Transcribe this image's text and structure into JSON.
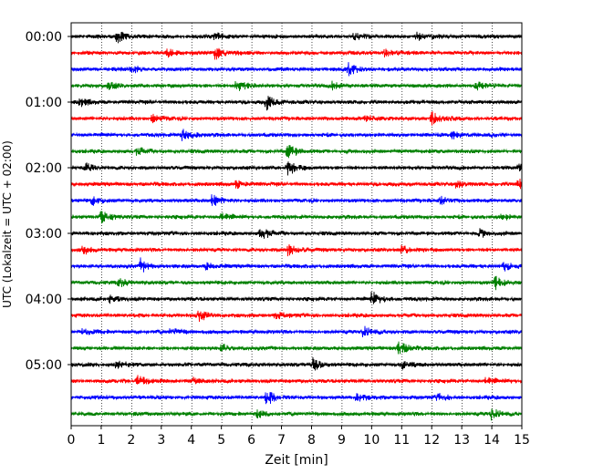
{
  "chart_data": {
    "type": "line",
    "xlabel": "Zeit  [min]",
    "ylabel": "UTC (Lokalzeit = UTC + 02:00)",
    "xlim": [
      0,
      15
    ],
    "x_ticks": [
      "0",
      "1",
      "2",
      "3",
      "4",
      "5",
      "6",
      "7",
      "8",
      "9",
      "10",
      "11",
      "12",
      "13",
      "14",
      "15"
    ],
    "y_ticks": [
      "00:00",
      "01:00",
      "02:00",
      "03:00",
      "04:00",
      "05:00"
    ],
    "grid": "vertical dotted at each minute",
    "trace_interval_min": 15,
    "trace_count": 24,
    "colors": [
      "#000000",
      "#ff0000",
      "#0000ff",
      "#008000"
    ],
    "traces": [
      {
        "start": "00:00",
        "color": "#000000",
        "events_min": [
          1.5,
          9.4,
          4.8,
          11.5
        ]
      },
      {
        "start": "00:15",
        "color": "#ff0000",
        "events_min": [
          4.8,
          3.2,
          10.4
        ]
      },
      {
        "start": "00:30",
        "color": "#0000ff",
        "events_min": [
          9.2,
          2.0
        ]
      },
      {
        "start": "00:45",
        "color": "#008000",
        "events_min": [
          5.5,
          1.2,
          13.5,
          8.7
        ]
      },
      {
        "start": "01:00",
        "color": "#000000",
        "events_min": [
          6.5,
          0.3
        ]
      },
      {
        "start": "01:15",
        "color": "#ff0000",
        "events_min": [
          12.0,
          9.8,
          2.7
        ]
      },
      {
        "start": "01:30",
        "color": "#0000ff",
        "events_min": [
          3.7,
          12.7
        ]
      },
      {
        "start": "01:45",
        "color": "#008000",
        "events_min": [
          7.2,
          2.2
        ]
      },
      {
        "start": "02:00",
        "color": "#000000",
        "events_min": [
          7.2,
          0.5,
          14.9
        ]
      },
      {
        "start": "02:15",
        "color": "#ff0000",
        "events_min": [
          14.9,
          12.8,
          5.5
        ]
      },
      {
        "start": "02:30",
        "color": "#0000ff",
        "events_min": [
          4.7,
          0.7,
          12.3
        ]
      },
      {
        "start": "02:45",
        "color": "#008000",
        "events_min": [
          1.0,
          14.3,
          5.0
        ]
      },
      {
        "start": "03:00",
        "color": "#000000",
        "events_min": [
          6.3,
          13.6
        ]
      },
      {
        "start": "03:15",
        "color": "#ff0000",
        "events_min": [
          7.2,
          0.4,
          11.0
        ]
      },
      {
        "start": "03:30",
        "color": "#0000ff",
        "events_min": [
          2.3,
          4.5,
          14.4
        ]
      },
      {
        "start": "03:45",
        "color": "#008000",
        "events_min": [
          14.1,
          1.6
        ]
      },
      {
        "start": "04:00",
        "color": "#000000",
        "events_min": [
          10.0,
          1.3
        ]
      },
      {
        "start": "04:15",
        "color": "#ff0000",
        "events_min": [
          4.2,
          6.8
        ]
      },
      {
        "start": "04:30",
        "color": "#0000ff",
        "events_min": [
          9.7,
          0.4,
          3.3
        ]
      },
      {
        "start": "04:45",
        "color": "#008000",
        "events_min": [
          10.9,
          5.0
        ]
      },
      {
        "start": "05:00",
        "color": "#000000",
        "events_min": [
          8.0,
          1.5,
          11.0
        ]
      },
      {
        "start": "05:15",
        "color": "#ff0000",
        "events_min": [
          2.2,
          4.0,
          13.8
        ]
      },
      {
        "start": "05:30",
        "color": "#0000ff",
        "events_min": [
          6.5,
          9.5,
          12.2
        ]
      },
      {
        "start": "05:45",
        "color": "#008000",
        "events_min": [
          14.0,
          6.2
        ]
      }
    ]
  }
}
